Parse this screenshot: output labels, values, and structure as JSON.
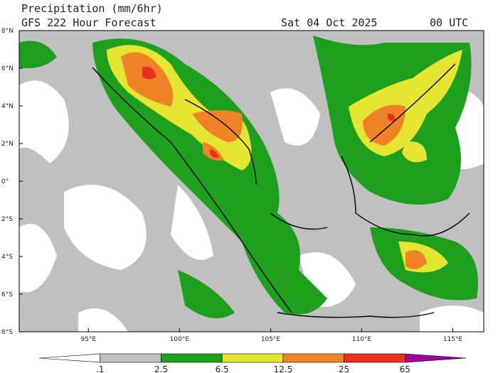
{
  "map": {
    "title": "Precipitation (mm/6hr)",
    "subtitle": "GFS 222 Hour Forecast",
    "date": "Sat 04 Oct 2025",
    "time": "00 UTC",
    "xlim": [
      91.2,
      116.7
    ],
    "ylim": [
      -8,
      8
    ],
    "xticks": [
      {
        "value": 95,
        "label": "95°E"
      },
      {
        "value": 100,
        "label": "100°E"
      },
      {
        "value": 105,
        "label": "105°E"
      },
      {
        "value": 110,
        "label": "110°E"
      },
      {
        "value": 115,
        "label": "115°E"
      }
    ],
    "yticks": [
      {
        "value": 8,
        "label": "8°N"
      },
      {
        "value": 6,
        "label": "6°N"
      },
      {
        "value": 4,
        "label": "4°N"
      },
      {
        "value": 2,
        "label": "2°N"
      },
      {
        "value": 0,
        "label": "0°"
      },
      {
        "value": -2,
        "label": "2°S"
      },
      {
        "value": -4,
        "label": "4°S"
      },
      {
        "value": -6,
        "label": "6°S"
      },
      {
        "value": -8,
        "label": "8°S"
      }
    ],
    "colorbar": {
      "levels": [
        {
          "value": 0.1,
          "label": ".1"
        },
        2.5,
        6.5,
        12.5,
        25,
        65
      ],
      "colors": [
        "#ffffff",
        "#c0c0c0",
        "#1ea01e",
        "#e6e632",
        "#f08228",
        "#e6321e",
        "#a000a0"
      ]
    }
  }
}
